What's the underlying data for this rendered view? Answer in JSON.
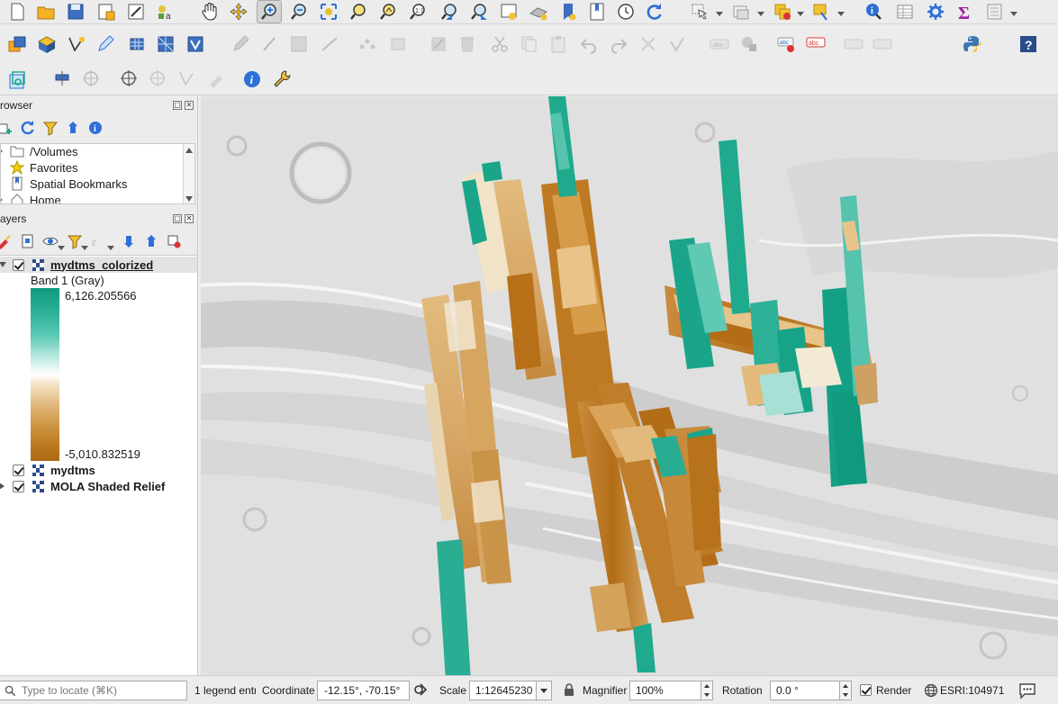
{
  "browser_panel": {
    "title": "rowser",
    "items": [
      {
        "label": "/Volumes",
        "icon": "folder-icon"
      },
      {
        "label": "Favorites",
        "icon": "star-icon"
      },
      {
        "label": "Spatial Bookmarks",
        "icon": "bookmark-icon"
      },
      {
        "label": "Home",
        "icon": "home-icon"
      }
    ]
  },
  "layers_panel": {
    "title": "ayers",
    "layers": [
      {
        "name": "mydtms_colorized",
        "checked": true,
        "expanded": true,
        "selected": true
      },
      {
        "name": "mydtms",
        "checked": true,
        "expanded": false,
        "selected": false
      },
      {
        "name": "MOLA Shaded Relief",
        "checked": true,
        "expanded": false,
        "selected": false
      }
    ],
    "legend": {
      "band_label": "Band 1 (Gray)",
      "max_value": "6,126.205566",
      "min_value": "-5,010.832519",
      "colors": {
        "high": "#0f9a7e",
        "mid": "#ffffff",
        "low": "#ad6a14"
      }
    }
  },
  "status_bar": {
    "locate_placeholder": "Type to locate (⌘K)",
    "legend_message": "1 legend entr",
    "coordinate_label": "Coordinate",
    "coordinate_value": "-12.15°, -70.15°",
    "scale_label": "Scale",
    "scale_value": "1:12645230",
    "magnifier_label": "Magnifier",
    "magnifier_value": "100%",
    "rotation_label": "Rotation",
    "rotation_value": "0.0 °",
    "render_label": "Render",
    "render_checked": true,
    "crs_label": "ESRI:104971"
  },
  "colors": {
    "accent_blue": "#2e6fd8",
    "toolbar_bg": "#ececec",
    "map_bg": "#d9d9d9",
    "teal": "#1aa58a",
    "brown": "#c07e2a"
  }
}
